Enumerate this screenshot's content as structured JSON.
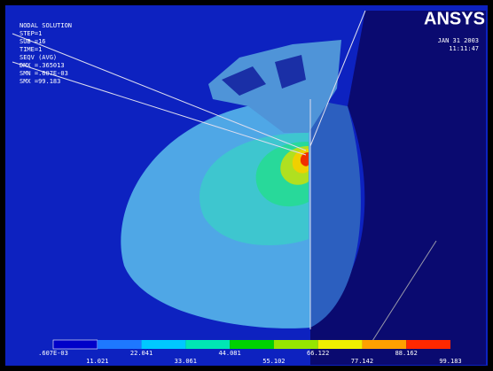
{
  "brand": "ANSYS",
  "date": "JAN 31 2003",
  "time": "11:11:47",
  "info": [
    "NODAL SOLUTION",
    "STEP=1",
    "SUB =16",
    "TIME=1",
    "SEQV     (AVG)",
    "DMX =.365013",
    "SMN =.607E-03",
    "SMX =99.183"
  ],
  "legend": {
    "colors": [
      "#0000c8",
      "#1e78ff",
      "#00c8ff",
      "#00e6b4",
      "#00d200",
      "#96e600",
      "#f0f000",
      "#ffa000",
      "#ff2800"
    ],
    "top_labels": [
      ".607E-03",
      "22.041",
      "44.081",
      "66.122",
      "88.162"
    ],
    "bottom_labels": [
      "11.021",
      "33.061",
      "55.102",
      "77.142",
      "99.183"
    ]
  }
}
